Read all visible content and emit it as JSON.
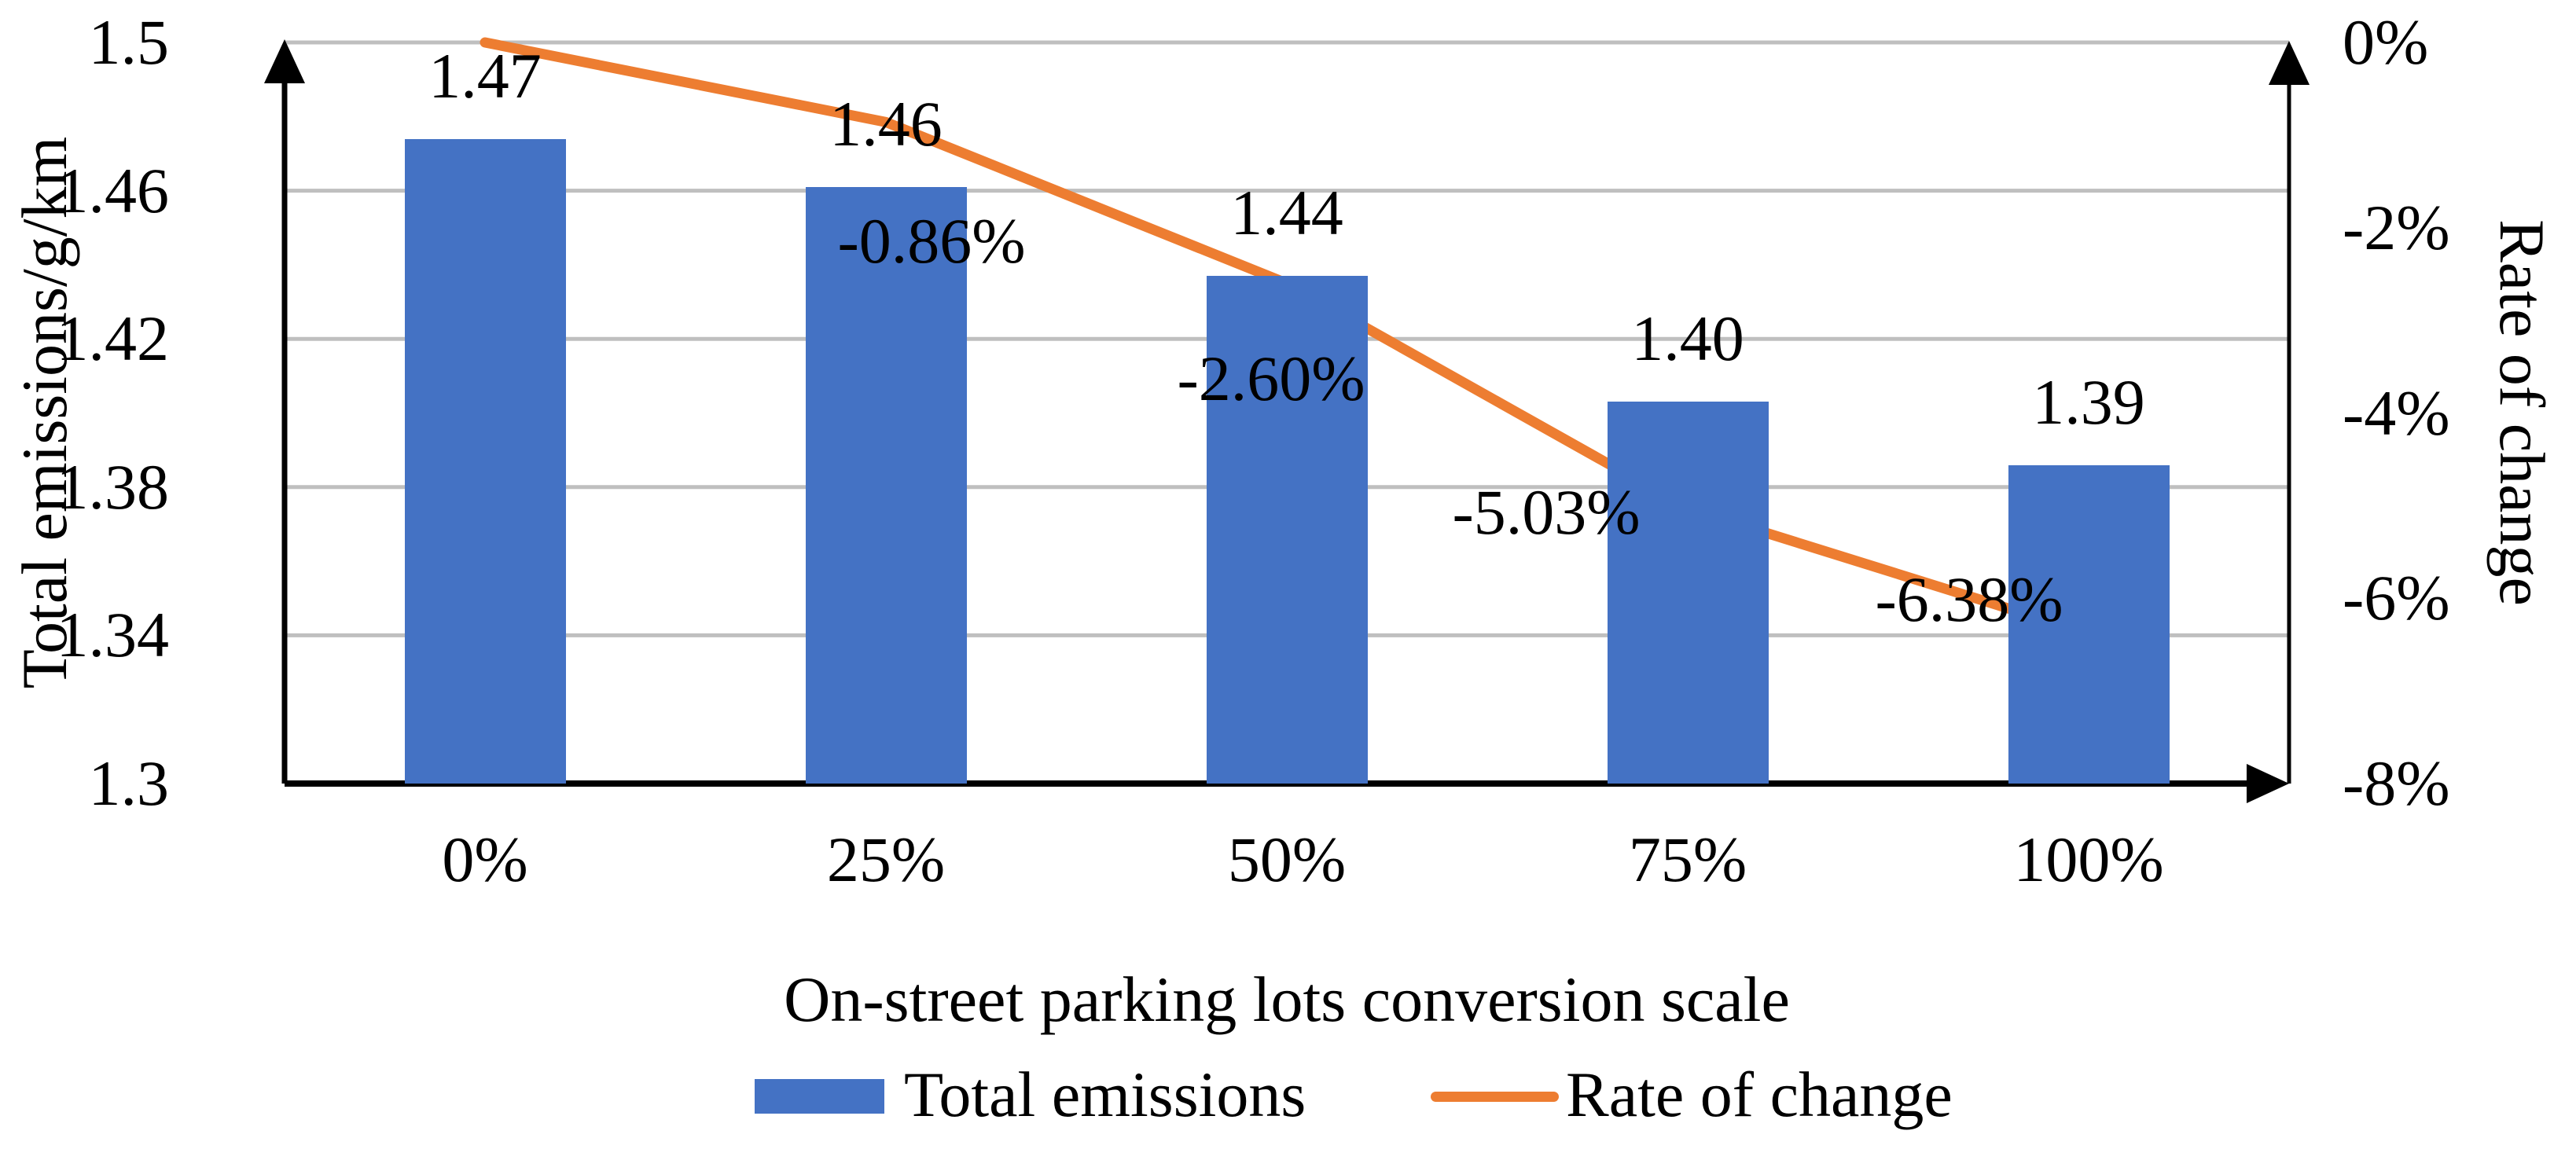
{
  "chart_data": {
    "type": "combo-bar-line",
    "categories": [
      "0%",
      "25%",
      "50%",
      "75%",
      "100%"
    ],
    "x_axis": {
      "title": "On-street parking lots conversion scale"
    },
    "left_axis": {
      "title": "Total emissions/g/km",
      "min": 1.3,
      "max": 1.5,
      "ticks": [
        "1.5",
        "1.46",
        "1.42",
        "1.38",
        "1.34",
        "1.3"
      ],
      "grid": true
    },
    "right_axis": {
      "title": "Rate of change",
      "min": -8,
      "max": 0,
      "ticks": [
        "0%",
        "-2%",
        "-4%",
        "-6%",
        "-8%"
      ]
    },
    "series": [
      {
        "name": "Total emissions",
        "type": "bar",
        "axis": "left",
        "color": "#4472C4",
        "values": [
          1.47,
          1.46,
          1.44,
          1.4,
          1.39
        ],
        "data_labels": [
          "1.47",
          "1.46",
          "1.44",
          "1.40",
          "1.39"
        ],
        "values_drawn": [
          1.474,
          1.461,
          1.437,
          1.403,
          1.386
        ]
      },
      {
        "name": "Rate of change",
        "type": "line",
        "axis": "right",
        "color": "#ED7D31",
        "values": [
          0,
          -0.86,
          -2.6,
          -5.03,
          -6.38
        ],
        "data_labels": [
          "",
          "-0.86%",
          "-2.60%",
          "-5.03%",
          "-6.38%"
        ]
      }
    ],
    "legend": {
      "position": "bottom",
      "items": [
        "Total emissions",
        "Rate of change"
      ]
    },
    "colors": {
      "bar": "#4472C4",
      "line": "#ED7D31",
      "grid": "#BFBFBF",
      "axis": "#000000",
      "text": "#000000",
      "background": "#FFFFFF"
    }
  }
}
